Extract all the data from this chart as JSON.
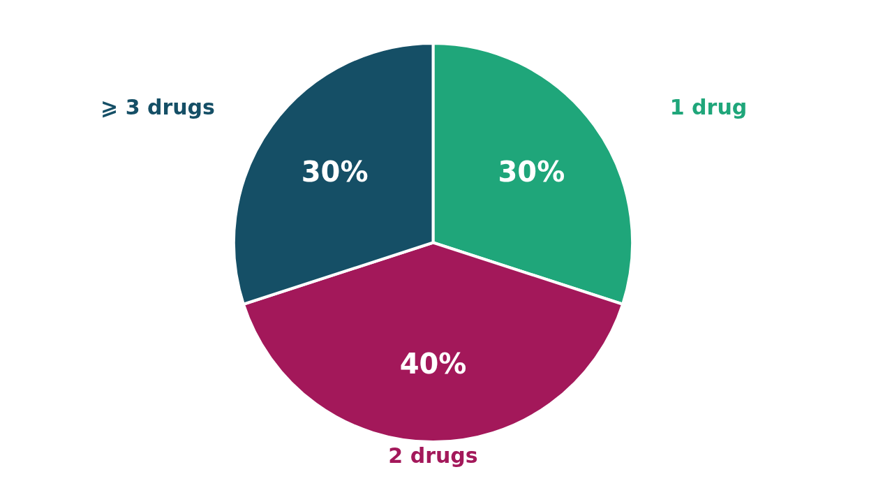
{
  "chart_data": {
    "type": "pie",
    "categories": [
      "1 drug",
      "2 drugs",
      "⩾ 3 drugs"
    ],
    "values": [
      30,
      40,
      30
    ],
    "colors": [
      "#1fa67a",
      "#a3185a",
      "#154f66"
    ],
    "value_labels": [
      "30%",
      "40%",
      "30%"
    ]
  }
}
